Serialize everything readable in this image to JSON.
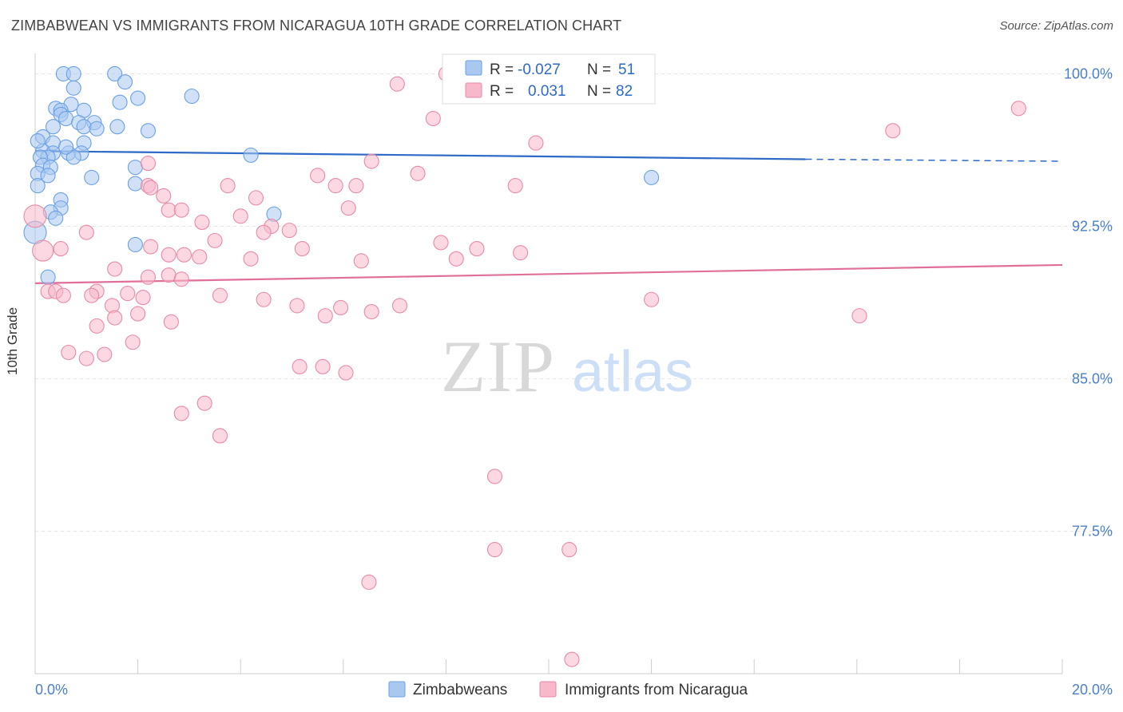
{
  "title": "ZIMBABWEAN VS IMMIGRANTS FROM NICARAGUA 10TH GRADE CORRELATION CHART",
  "source": "Source: ZipAtlas.com",
  "watermark": {
    "zip": "ZIP",
    "atlas": "atlas"
  },
  "legend": {
    "r_label": "R =",
    "n_label": "N =",
    "rows": [
      {
        "r": "-0.027",
        "n": "51",
        "color": "#a9c8f0"
      },
      {
        "r": "0.031",
        "n": "82",
        "color": "#f7b8cb"
      }
    ]
  },
  "bottom_legend": [
    {
      "label": "Zimbabweans",
      "color": "#a9c8f0"
    },
    {
      "label": "Immigrants from Nicaragua",
      "color": "#f7b8cb"
    }
  ],
  "chart_data": {
    "type": "scatter",
    "xlabel": "",
    "ylabel": "10th Grade",
    "xlim": [
      0,
      20
    ],
    "ylim": [
      70.5,
      101.0
    ],
    "x_tick_labels": [
      "0.0%",
      "20.0%"
    ],
    "y_ticks": [
      77.5,
      85.0,
      92.5,
      100.0
    ],
    "y_tick_labels": [
      "77.5%",
      "85.0%",
      "92.5%",
      "100.0%"
    ],
    "grid": true,
    "legend_position": "top-center",
    "series": [
      {
        "name": "Zimbabweans",
        "color": "#6aa0e6",
        "fill": "#a9c8f0",
        "trend": {
          "x": [
            0,
            15
          ],
          "y": [
            96.2,
            95.8
          ],
          "dash_to": [
            15,
            20
          ],
          "dash_y": [
            95.8,
            95.7
          ],
          "color": "#2e6ac7"
        },
        "points": [
          [
            0.55,
            100.0
          ],
          [
            0.75,
            100.0
          ],
          [
            1.55,
            100.0
          ],
          [
            1.75,
            99.6
          ],
          [
            0.75,
            99.3
          ],
          [
            3.05,
            98.9
          ],
          [
            2.0,
            98.8
          ],
          [
            1.65,
            98.6
          ],
          [
            0.7,
            98.5
          ],
          [
            0.4,
            98.3
          ],
          [
            0.5,
            98.2
          ],
          [
            0.95,
            98.2
          ],
          [
            0.5,
            98.0
          ],
          [
            0.6,
            97.8
          ],
          [
            0.85,
            97.6
          ],
          [
            1.15,
            97.6
          ],
          [
            1.6,
            97.4
          ],
          [
            0.35,
            97.4
          ],
          [
            0.95,
            97.4
          ],
          [
            1.2,
            97.3
          ],
          [
            2.2,
            97.2
          ],
          [
            0.15,
            96.9
          ],
          [
            0.95,
            96.6
          ],
          [
            0.35,
            96.6
          ],
          [
            0.15,
            96.2
          ],
          [
            0.35,
            96.1
          ],
          [
            0.65,
            96.1
          ],
          [
            0.9,
            96.1
          ],
          [
            4.2,
            96.0
          ],
          [
            0.25,
            95.9
          ],
          [
            0.1,
            95.9
          ],
          [
            0.75,
            95.9
          ],
          [
            0.15,
            95.5
          ],
          [
            0.3,
            95.4
          ],
          [
            1.95,
            95.4
          ],
          [
            0.05,
            95.1
          ],
          [
            0.25,
            95.0
          ],
          [
            1.1,
            94.9
          ],
          [
            12.0,
            94.9
          ],
          [
            1.95,
            94.6
          ],
          [
            0.05,
            94.5
          ],
          [
            0.5,
            93.8
          ],
          [
            0.5,
            93.4
          ],
          [
            0.3,
            93.2
          ],
          [
            4.65,
            93.1
          ],
          [
            0.4,
            92.9
          ],
          [
            1.95,
            91.6
          ],
          [
            0.0,
            92.2
          ],
          [
            0.25,
            90.0
          ],
          [
            0.05,
            96.7
          ],
          [
            0.6,
            96.4
          ]
        ]
      },
      {
        "name": "Immigrants from Nicaragua",
        "color": "#e98aa6",
        "fill": "#f7b8cb",
        "trend": {
          "x": [
            0,
            20
          ],
          "y": [
            89.7,
            90.6
          ],
          "color": "#e0709a"
        },
        "points": [
          [
            8.0,
            100.0
          ],
          [
            7.05,
            99.5
          ],
          [
            19.15,
            98.3
          ],
          [
            7.75,
            97.8
          ],
          [
            16.7,
            97.2
          ],
          [
            9.75,
            96.6
          ],
          [
            6.55,
            95.7
          ],
          [
            2.2,
            95.6
          ],
          [
            7.45,
            95.1
          ],
          [
            5.5,
            95.0
          ],
          [
            2.2,
            94.5
          ],
          [
            3.75,
            94.5
          ],
          [
            5.85,
            94.5
          ],
          [
            6.25,
            94.5
          ],
          [
            9.35,
            94.5
          ],
          [
            2.25,
            94.4
          ],
          [
            2.5,
            94.0
          ],
          [
            4.3,
            93.9
          ],
          [
            6.1,
            93.4
          ],
          [
            2.6,
            93.3
          ],
          [
            2.85,
            93.3
          ],
          [
            4.0,
            93.0
          ],
          [
            3.25,
            92.7
          ],
          [
            4.6,
            92.5
          ],
          [
            4.95,
            92.3
          ],
          [
            4.45,
            92.2
          ],
          [
            3.5,
            91.8
          ],
          [
            5.2,
            91.4
          ],
          [
            8.6,
            91.4
          ],
          [
            7.9,
            91.7
          ],
          [
            0.5,
            91.4
          ],
          [
            2.25,
            91.5
          ],
          [
            0.15,
            91.3
          ],
          [
            2.6,
            91.1
          ],
          [
            2.9,
            91.1
          ],
          [
            3.2,
            91.0
          ],
          [
            4.2,
            90.9
          ],
          [
            6.35,
            90.8
          ],
          [
            8.2,
            90.9
          ],
          [
            9.45,
            91.2
          ],
          [
            1.55,
            90.4
          ],
          [
            2.6,
            90.1
          ],
          [
            2.2,
            90.0
          ],
          [
            2.85,
            89.9
          ],
          [
            1.2,
            89.3
          ],
          [
            1.1,
            89.1
          ],
          [
            0.25,
            89.3
          ],
          [
            0.4,
            89.3
          ],
          [
            0.55,
            89.1
          ],
          [
            1.8,
            89.2
          ],
          [
            2.1,
            89.0
          ],
          [
            3.6,
            89.1
          ],
          [
            4.45,
            88.9
          ],
          [
            12.0,
            88.9
          ],
          [
            1.5,
            88.6
          ],
          [
            5.1,
            88.6
          ],
          [
            5.95,
            88.5
          ],
          [
            6.55,
            88.3
          ],
          [
            5.65,
            88.1
          ],
          [
            7.1,
            88.6
          ],
          [
            16.05,
            88.1
          ],
          [
            2.0,
            88.2
          ],
          [
            1.55,
            88.0
          ],
          [
            2.65,
            87.8
          ],
          [
            1.2,
            87.6
          ],
          [
            1.9,
            86.8
          ],
          [
            1.35,
            86.2
          ],
          [
            0.65,
            86.3
          ],
          [
            1.0,
            86.0
          ],
          [
            5.15,
            85.6
          ],
          [
            5.6,
            85.6
          ],
          [
            6.05,
            85.3
          ],
          [
            3.3,
            83.8
          ],
          [
            3.6,
            82.2
          ],
          [
            2.85,
            83.3
          ],
          [
            8.95,
            80.2
          ],
          [
            8.95,
            76.6
          ],
          [
            10.4,
            76.6
          ],
          [
            6.5,
            75.0
          ],
          [
            10.45,
            71.2
          ],
          [
            0.0,
            93.0
          ],
          [
            1.0,
            92.2
          ]
        ]
      }
    ]
  }
}
